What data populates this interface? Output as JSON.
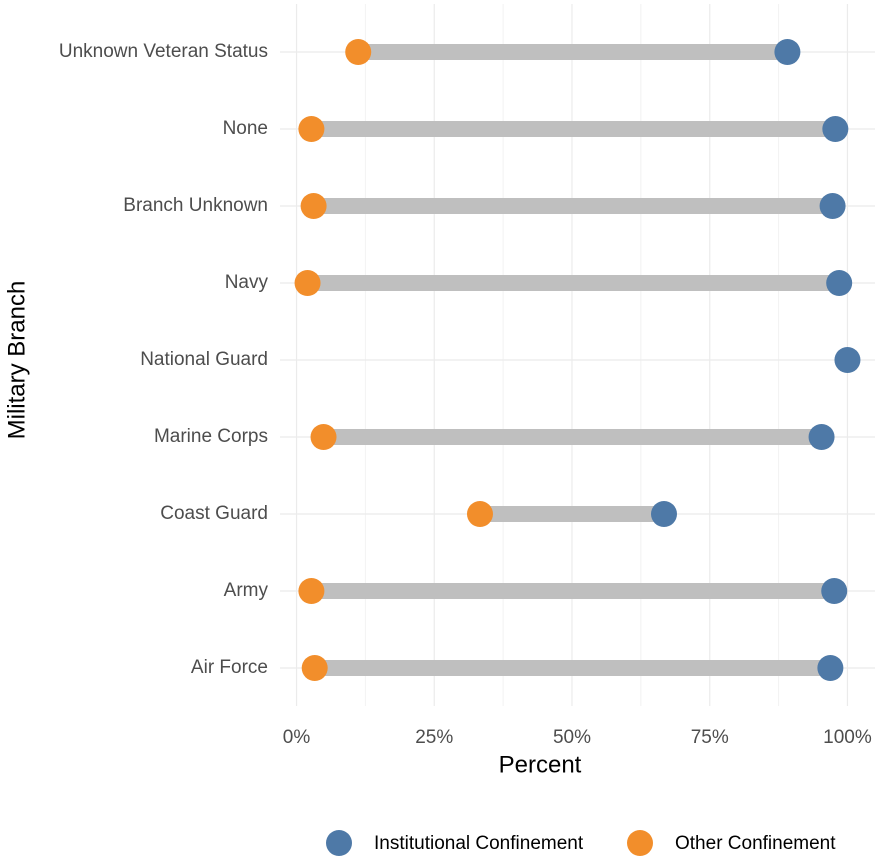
{
  "chart_data": {
    "type": "dumbbell",
    "x_label": "Percent",
    "y_label": "Military Branch",
    "categories": [
      "Air Force",
      "Army",
      "Coast Guard",
      "Marine Corps",
      "National Guard",
      "Navy",
      "Branch Unknown",
      "None",
      "Unknown Veteran Status"
    ],
    "series": [
      {
        "name": "Institutional Confinement",
        "color": "#4e79a7",
        "values": [
          96.9,
          97.6,
          66.7,
          95.3,
          100,
          98.5,
          97.3,
          97.8,
          89.1
        ]
      },
      {
        "name": "Other Confinement",
        "color": "#f28e2b",
        "values": [
          3.3,
          2.7,
          33.3,
          4.9,
          null,
          2.0,
          3.1,
          2.7,
          11.2
        ]
      }
    ],
    "segment_color": "#bfbfbf",
    "xlim": [
      -3,
      105
    ],
    "xticks": [
      {
        "value": 0,
        "label": "0%"
      },
      {
        "value": 25,
        "label": "25%"
      },
      {
        "value": 50,
        "label": "50%"
      },
      {
        "value": 75,
        "label": "75%"
      },
      {
        "value": 100,
        "label": "100%"
      }
    ],
    "grid": true,
    "legend": "bottom"
  }
}
